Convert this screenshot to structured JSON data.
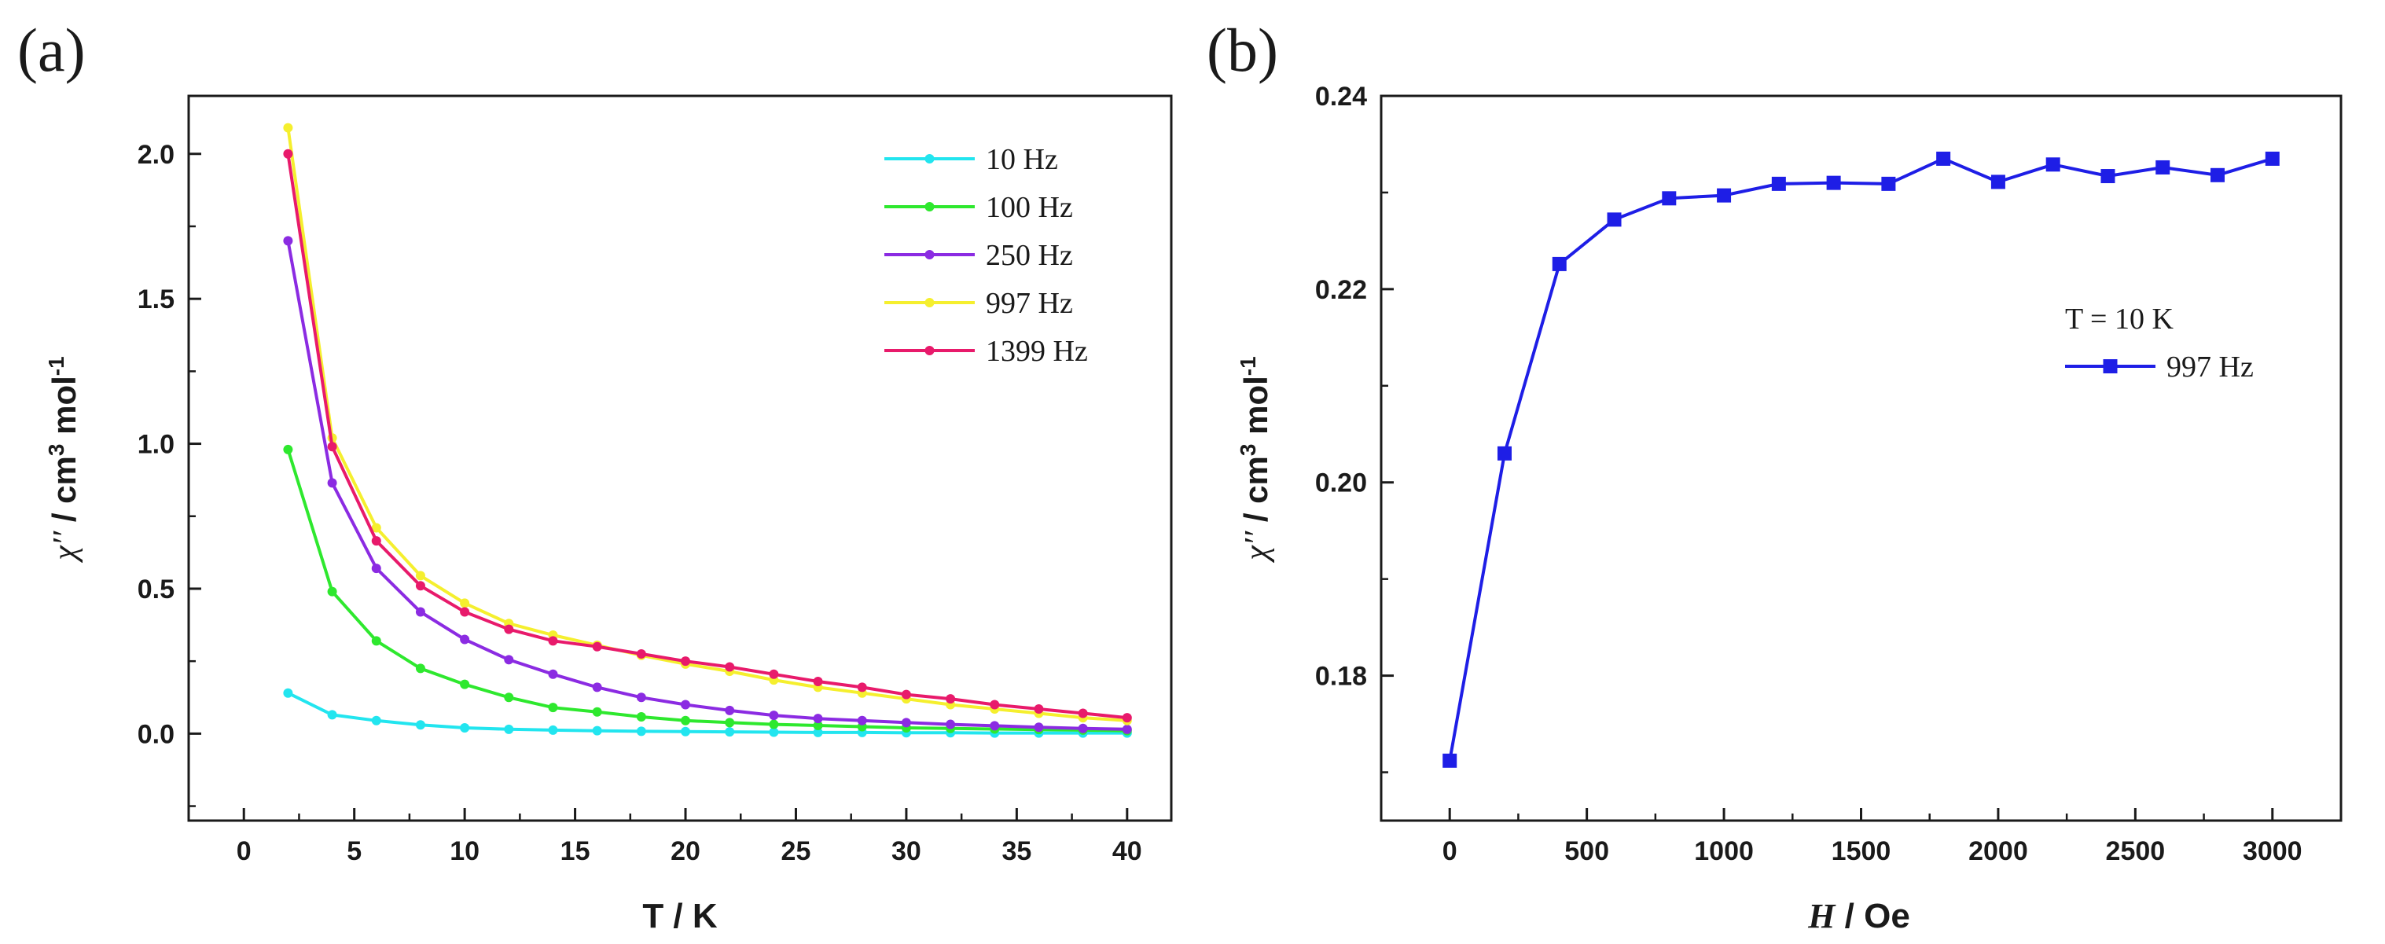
{
  "panels": [
    {
      "label": "(a)",
      "annotation": "",
      "chart_data": {
        "type": "line",
        "xlabel": "T  / K",
        "ylabel_parts": [
          "χ′′",
          " / cm",
          "3",
          " mol",
          "-1"
        ],
        "xlim": [
          -2.5,
          42
        ],
        "ylim": [
          -0.3,
          2.2
        ],
        "xticks": [
          0,
          5,
          10,
          15,
          20,
          25,
          30,
          35,
          40
        ],
        "yticks": [
          0.0,
          0.5,
          1.0,
          1.5,
          2.0
        ],
        "ytick_labels": [
          "0.0",
          "0.5",
          "1.0",
          "1.5",
          "2.0"
        ],
        "legend_position": "top-right",
        "marker": "circle",
        "x": [
          2,
          4,
          6,
          8,
          10,
          12,
          14,
          16,
          18,
          20,
          22,
          24,
          26,
          28,
          30,
          32,
          34,
          36,
          38,
          40
        ],
        "series": [
          {
            "name": "10 Hz",
            "color": "#22e5ef",
            "values": [
              0.14,
              0.065,
              0.045,
              0.03,
              0.02,
              0.015,
              0.012,
              0.01,
              0.008,
              0.007,
              0.006,
              0.005,
              0.004,
              0.004,
              0.003,
              0.003,
              0.002,
              0.002,
              0.002,
              0.002
            ]
          },
          {
            "name": "100 Hz",
            "color": "#2ee82e",
            "values": [
              0.98,
              0.49,
              0.32,
              0.225,
              0.17,
              0.125,
              0.09,
              0.075,
              0.058,
              0.045,
              0.038,
              0.032,
              0.028,
              0.024,
              0.02,
              0.018,
              0.016,
              0.014,
              0.012,
              0.01
            ]
          },
          {
            "name": "250 Hz",
            "color": "#8b2be2",
            "values": [
              1.7,
              0.865,
              0.57,
              0.42,
              0.325,
              0.255,
              0.205,
              0.16,
              0.125,
              0.1,
              0.08,
              0.063,
              0.052,
              0.045,
              0.038,
              0.032,
              0.027,
              0.022,
              0.018,
              0.015
            ]
          },
          {
            "name": "997 Hz",
            "color": "#f5ef2e",
            "values": [
              2.09,
              1.02,
              0.71,
              0.545,
              0.45,
              0.38,
              0.34,
              0.305,
              0.27,
              0.24,
              0.215,
              0.185,
              0.16,
              0.14,
              0.12,
              0.1,
              0.085,
              0.07,
              0.055,
              0.045
            ]
          },
          {
            "name": "1399 Hz",
            "color": "#e81a6b",
            "values": [
              2.0,
              0.99,
              0.665,
              0.51,
              0.42,
              0.36,
              0.32,
              0.3,
              0.275,
              0.25,
              0.23,
              0.205,
              0.18,
              0.16,
              0.135,
              0.12,
              0.1,
              0.085,
              0.07,
              0.055
            ]
          }
        ]
      }
    },
    {
      "label": "(b)",
      "annotation": "T = 10 K",
      "chart_data": {
        "type": "line",
        "xlabel_italic": "H",
        "xlabel_rest": "  / Oe",
        "ylabel_parts": [
          "χ′′",
          " / cm",
          "3",
          " mol",
          "-1"
        ],
        "xlim": [
          -250,
          3250
        ],
        "ylim": [
          0.165,
          0.24
        ],
        "xticks": [
          0,
          500,
          1000,
          1500,
          2000,
          2500,
          3000
        ],
        "yticks": [
          0.18,
          0.2,
          0.22,
          0.24
        ],
        "ytick_labels": [
          "0.18",
          "0.20",
          "0.22",
          "0.24"
        ],
        "legend_position": "right",
        "marker": "square",
        "x": [
          0,
          200,
          400,
          600,
          800,
          1000,
          1200,
          1400,
          1600,
          1800,
          2000,
          2200,
          2400,
          2600,
          2800,
          3000
        ],
        "series": [
          {
            "name": "997 Hz",
            "color": "#1e1ee6",
            "values": [
              0.1712,
              0.203,
              0.2226,
              0.2272,
              0.2294,
              0.2297,
              0.2309,
              0.231,
              0.2309,
              0.2335,
              0.2311,
              0.2329,
              0.2317,
              0.2326,
              0.2318,
              0.2335
            ]
          }
        ]
      }
    }
  ]
}
